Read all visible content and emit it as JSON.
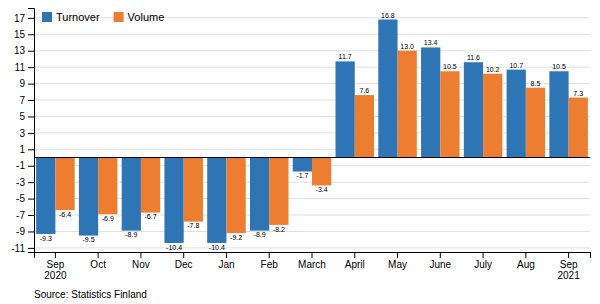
{
  "chart_data": {
    "type": "bar",
    "categories": [
      "Sep\n2020",
      "Oct",
      "Nov",
      "Dec",
      "Jan",
      "Feb",
      "March",
      "April",
      "May",
      "June",
      "July",
      "Aug",
      "Sep\n2021"
    ],
    "series": [
      {
        "name": "Turnover",
        "color": "#2E75B6",
        "values": [
          -9.3,
          -9.5,
          -8.9,
          -10.4,
          -10.4,
          -8.9,
          -1.7,
          11.7,
          16.8,
          13.4,
          11.6,
          10.7,
          10.5
        ],
        "value_labels": [
          "-9.3",
          "-9.5",
          "-8.9",
          "-10.4",
          "-10.4",
          "-8.9",
          "-1.7",
          "11.7",
          "16.8",
          "13.4",
          "11.6",
          "10.7",
          "10.5"
        ]
      },
      {
        "name": "Volume",
        "color": "#ED7D31",
        "values": [
          -6.4,
          -6.9,
          -6.7,
          -7.8,
          -9.2,
          -8.2,
          -3.4,
          7.6,
          13.0,
          10.5,
          10.2,
          8.5,
          7.3
        ],
        "value_labels": [
          "-6.4",
          "-6.9",
          "-6.7",
          "-7.8",
          "-9.2",
          "-8.2",
          "-3.4",
          "7.6",
          "13.0",
          "10.5",
          "10.2",
          "8.5",
          "7.3"
        ]
      }
    ],
    "ylim": [
      -11.5,
      18.2
    ],
    "yticks": [
      -11,
      -9,
      -7,
      -5,
      -3,
      -1,
      1,
      3,
      5,
      7,
      9,
      11,
      13,
      15,
      17
    ],
    "grid": true,
    "legend": "upper-left",
    "data_labels": true,
    "annotations": [
      "Source: Statistics Finland"
    ]
  }
}
